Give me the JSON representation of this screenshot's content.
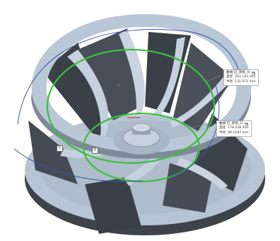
{
  "callouts": [
    {
      "title": "曲线:已_草绘_4)",
      "rows": [
        {
          "key": "直径",
          "value": "262.143 mm"
        },
        {
          "key": "半径",
          "value": "131.071 mm"
        }
      ]
    },
    {
      "title": "曲线:已_草绘_2)",
      "rows": [
        {
          "key": "直径",
          "value": "178.438 mm"
        },
        {
          "key": "半径",
          "value": "89.2187 mm"
        }
      ]
    }
  ],
  "markers": [
    "①",
    "②"
  ],
  "colors": {
    "steel_light": "#b4c2d1",
    "steel_dark": "#3b4149",
    "curve_green": "#3bbf3b",
    "curve_blue": "#3a55a8",
    "axis_red": "#d03c3c"
  }
}
